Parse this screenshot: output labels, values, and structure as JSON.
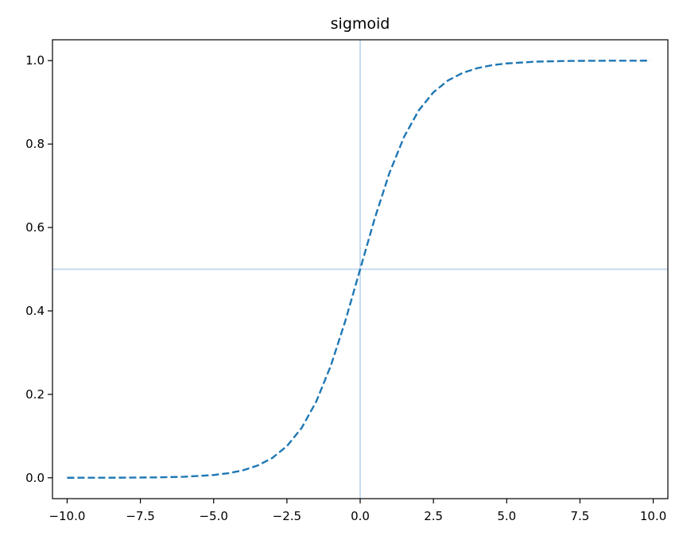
{
  "chart_data": {
    "type": "line",
    "title": "sigmoid",
    "xlabel": "",
    "ylabel": "",
    "xlim": [
      -10.5,
      10.5
    ],
    "ylim": [
      -0.05,
      1.05
    ],
    "grid": false,
    "x_ticks": [
      -10.0,
      -7.5,
      -5.0,
      -2.5,
      0.0,
      2.5,
      5.0,
      7.5,
      10.0
    ],
    "x_tick_labels": [
      "−10.0",
      "−7.5",
      "−5.0",
      "−2.5",
      "0.0",
      "2.5",
      "5.0",
      "7.5",
      "10.0"
    ],
    "y_ticks": [
      0.0,
      0.2,
      0.4,
      0.6,
      0.8,
      1.0
    ],
    "y_tick_labels": [
      "0.0",
      "0.2",
      "0.4",
      "0.6",
      "0.8",
      "1.0"
    ],
    "reference_lines": {
      "vertical_x": 0,
      "horizontal_y": 0.5,
      "color": "#c6dbef"
    },
    "series": [
      {
        "line_style": "dashed",
        "color": "#1f77b4",
        "x": [
          -10,
          -9,
          -8,
          -7,
          -6,
          -5,
          -4.5,
          -4,
          -3.5,
          -3,
          -2.5,
          -2,
          -1.5,
          -1,
          -0.5,
          0,
          0.5,
          1,
          1.5,
          2,
          2.5,
          3,
          3.5,
          4,
          4.5,
          5,
          6,
          7,
          8,
          9,
          9.9
        ],
        "y": [
          5e-05,
          0.00012,
          0.00034,
          0.00091,
          0.00247,
          0.00669,
          0.01099,
          0.01799,
          0.02931,
          0.04743,
          0.07586,
          0.1192,
          0.18243,
          0.26894,
          0.37754,
          0.5,
          0.62246,
          0.73106,
          0.81757,
          0.8808,
          0.92414,
          0.95257,
          0.97069,
          0.98201,
          0.98901,
          0.99331,
          0.99753,
          0.99909,
          0.99966,
          0.99988,
          0.99995
        ]
      }
    ]
  }
}
